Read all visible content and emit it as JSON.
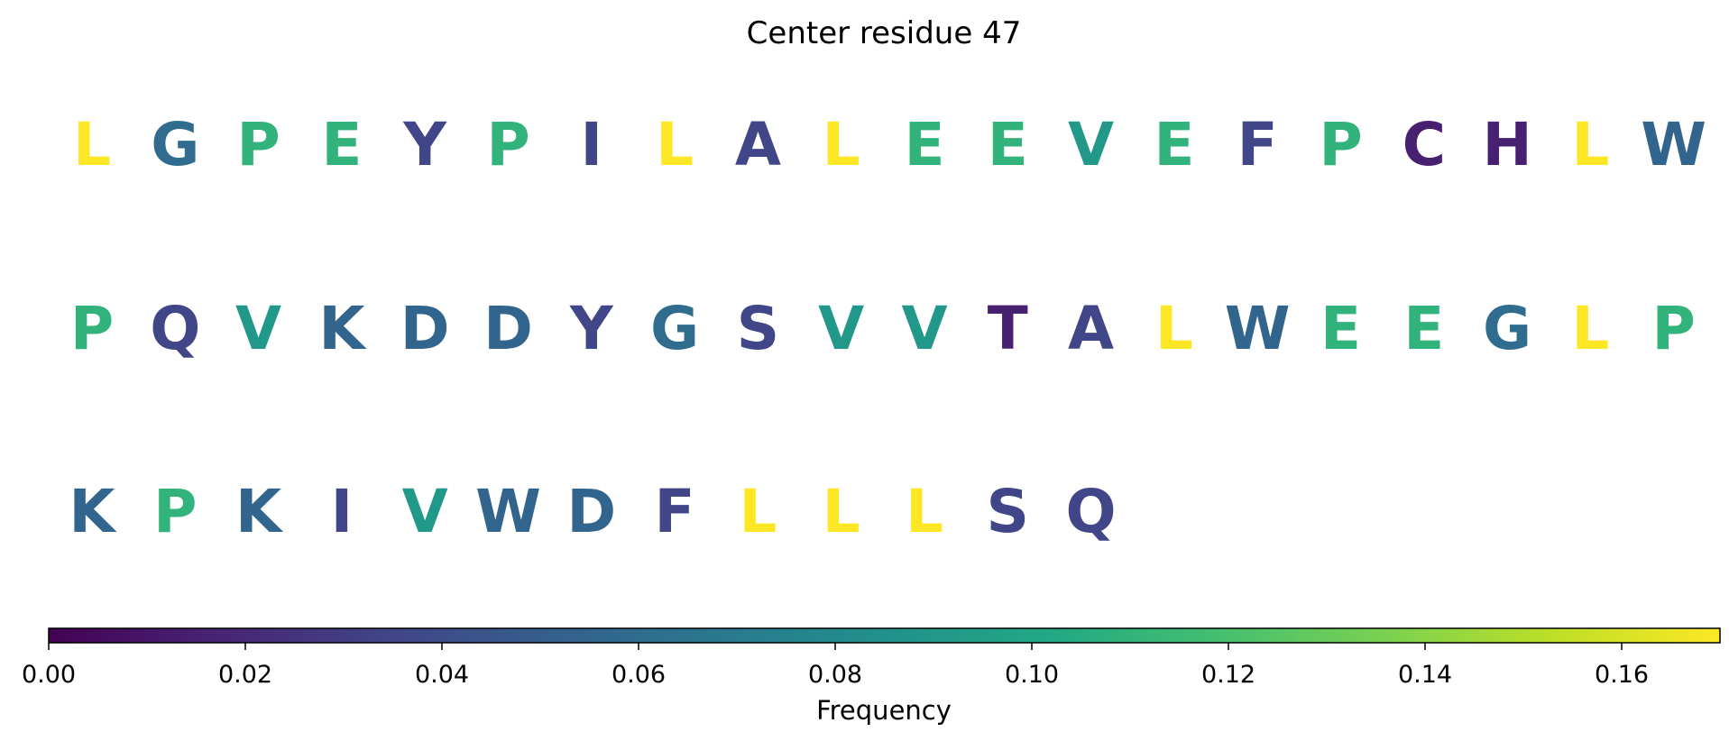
{
  "chart_data": {
    "type": "heatmap",
    "title": "Center residue 47",
    "residues": [
      {
        "letter": "L",
        "value": 0.17
      },
      {
        "letter": "G",
        "value": 0.06
      },
      {
        "letter": "P",
        "value": 0.11
      },
      {
        "letter": "E",
        "value": 0.11
      },
      {
        "letter": "Y",
        "value": 0.035
      },
      {
        "letter": "P",
        "value": 0.11
      },
      {
        "letter": "I",
        "value": 0.035
      },
      {
        "letter": "L",
        "value": 0.17
      },
      {
        "letter": "A",
        "value": 0.035
      },
      {
        "letter": "L",
        "value": 0.17
      },
      {
        "letter": "E",
        "value": 0.11
      },
      {
        "letter": "E",
        "value": 0.11
      },
      {
        "letter": "V",
        "value": 0.09
      },
      {
        "letter": "E",
        "value": 0.11
      },
      {
        "letter": "F",
        "value": 0.035
      },
      {
        "letter": "P",
        "value": 0.11
      },
      {
        "letter": "C",
        "value": 0.015
      },
      {
        "letter": "H",
        "value": 0.015
      },
      {
        "letter": "L",
        "value": 0.17
      },
      {
        "letter": "W",
        "value": 0.055
      },
      {
        "letter": "P",
        "value": 0.11
      },
      {
        "letter": "Q",
        "value": 0.035
      },
      {
        "letter": "V",
        "value": 0.09
      },
      {
        "letter": "K",
        "value": 0.055
      },
      {
        "letter": "D",
        "value": 0.055
      },
      {
        "letter": "D",
        "value": 0.055
      },
      {
        "letter": "Y",
        "value": 0.035
      },
      {
        "letter": "G",
        "value": 0.06
      },
      {
        "letter": "S",
        "value": 0.035
      },
      {
        "letter": "V",
        "value": 0.09
      },
      {
        "letter": "V",
        "value": 0.09
      },
      {
        "letter": "T",
        "value": 0.015
      },
      {
        "letter": "A",
        "value": 0.035
      },
      {
        "letter": "L",
        "value": 0.17
      },
      {
        "letter": "W",
        "value": 0.055
      },
      {
        "letter": "E",
        "value": 0.11
      },
      {
        "letter": "E",
        "value": 0.11
      },
      {
        "letter": "G",
        "value": 0.06
      },
      {
        "letter": "L",
        "value": 0.17
      },
      {
        "letter": "P",
        "value": 0.11
      },
      {
        "letter": "K",
        "value": 0.055
      },
      {
        "letter": "P",
        "value": 0.11
      },
      {
        "letter": "K",
        "value": 0.055
      },
      {
        "letter": "I",
        "value": 0.035
      },
      {
        "letter": "V",
        "value": 0.09
      },
      {
        "letter": "W",
        "value": 0.055
      },
      {
        "letter": "D",
        "value": 0.055
      },
      {
        "letter": "F",
        "value": 0.035
      },
      {
        "letter": "L",
        "value": 0.17
      },
      {
        "letter": "L",
        "value": 0.17
      },
      {
        "letter": "L",
        "value": 0.17
      },
      {
        "letter": "S",
        "value": 0.035
      },
      {
        "letter": "Q",
        "value": 0.035
      }
    ],
    "colorbar": {
      "label": "Frequency",
      "range": [
        0.0,
        0.17
      ],
      "ticks": [
        0.0,
        0.02,
        0.04,
        0.06,
        0.08,
        0.1,
        0.12,
        0.14,
        0.16
      ],
      "tick_labels": [
        "0.00",
        "0.02",
        "0.04",
        "0.06",
        "0.08",
        "0.10",
        "0.12",
        "0.14",
        "0.16"
      ],
      "colormap": "viridis",
      "orientation": "horizontal",
      "placement": "bottom"
    }
  }
}
